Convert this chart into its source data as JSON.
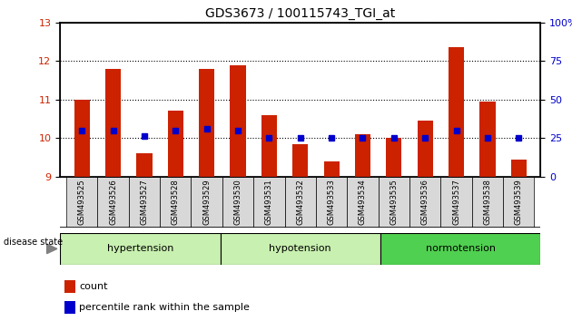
{
  "title": "GDS3673 / 100115743_TGI_at",
  "samples": [
    "GSM493525",
    "GSM493526",
    "GSM493527",
    "GSM493528",
    "GSM493529",
    "GSM493530",
    "GSM493531",
    "GSM493532",
    "GSM493533",
    "GSM493534",
    "GSM493535",
    "GSM493536",
    "GSM493537",
    "GSM493538",
    "GSM493539"
  ],
  "count_values": [
    11.0,
    11.8,
    9.6,
    10.7,
    11.8,
    11.9,
    10.6,
    9.85,
    9.4,
    10.1,
    10.0,
    10.45,
    12.35,
    10.95,
    9.45
  ],
  "percentile_values": [
    10.2,
    10.2,
    10.05,
    10.2,
    10.25,
    10.2,
    10.0,
    10.0,
    10.0,
    10.0,
    10.0,
    10.0,
    10.2,
    10.0,
    10.0
  ],
  "group_defs": [
    {
      "label": "hypertension",
      "start": 0,
      "end": 5,
      "color": "#c8f0b0"
    },
    {
      "label": "hypotension",
      "start": 5,
      "end": 10,
      "color": "#c8f0b0"
    },
    {
      "label": "normotension",
      "start": 10,
      "end": 15,
      "color": "#50d050"
    }
  ],
  "ylim_left": [
    9,
    13
  ],
  "ylim_right": [
    0,
    100
  ],
  "yticks_left": [
    9,
    10,
    11,
    12,
    13
  ],
  "yticks_right": [
    0,
    25,
    50,
    75,
    100
  ],
  "bar_color": "#cc2200",
  "marker_color": "#0000cc",
  "bar_width": 0.5,
  "background_color": "#ffffff",
  "plot_bg_color": "#ffffff",
  "grid_color": "#000000",
  "tick_label_color_left": "#cc2200",
  "tick_label_color_right": "#0000cc"
}
